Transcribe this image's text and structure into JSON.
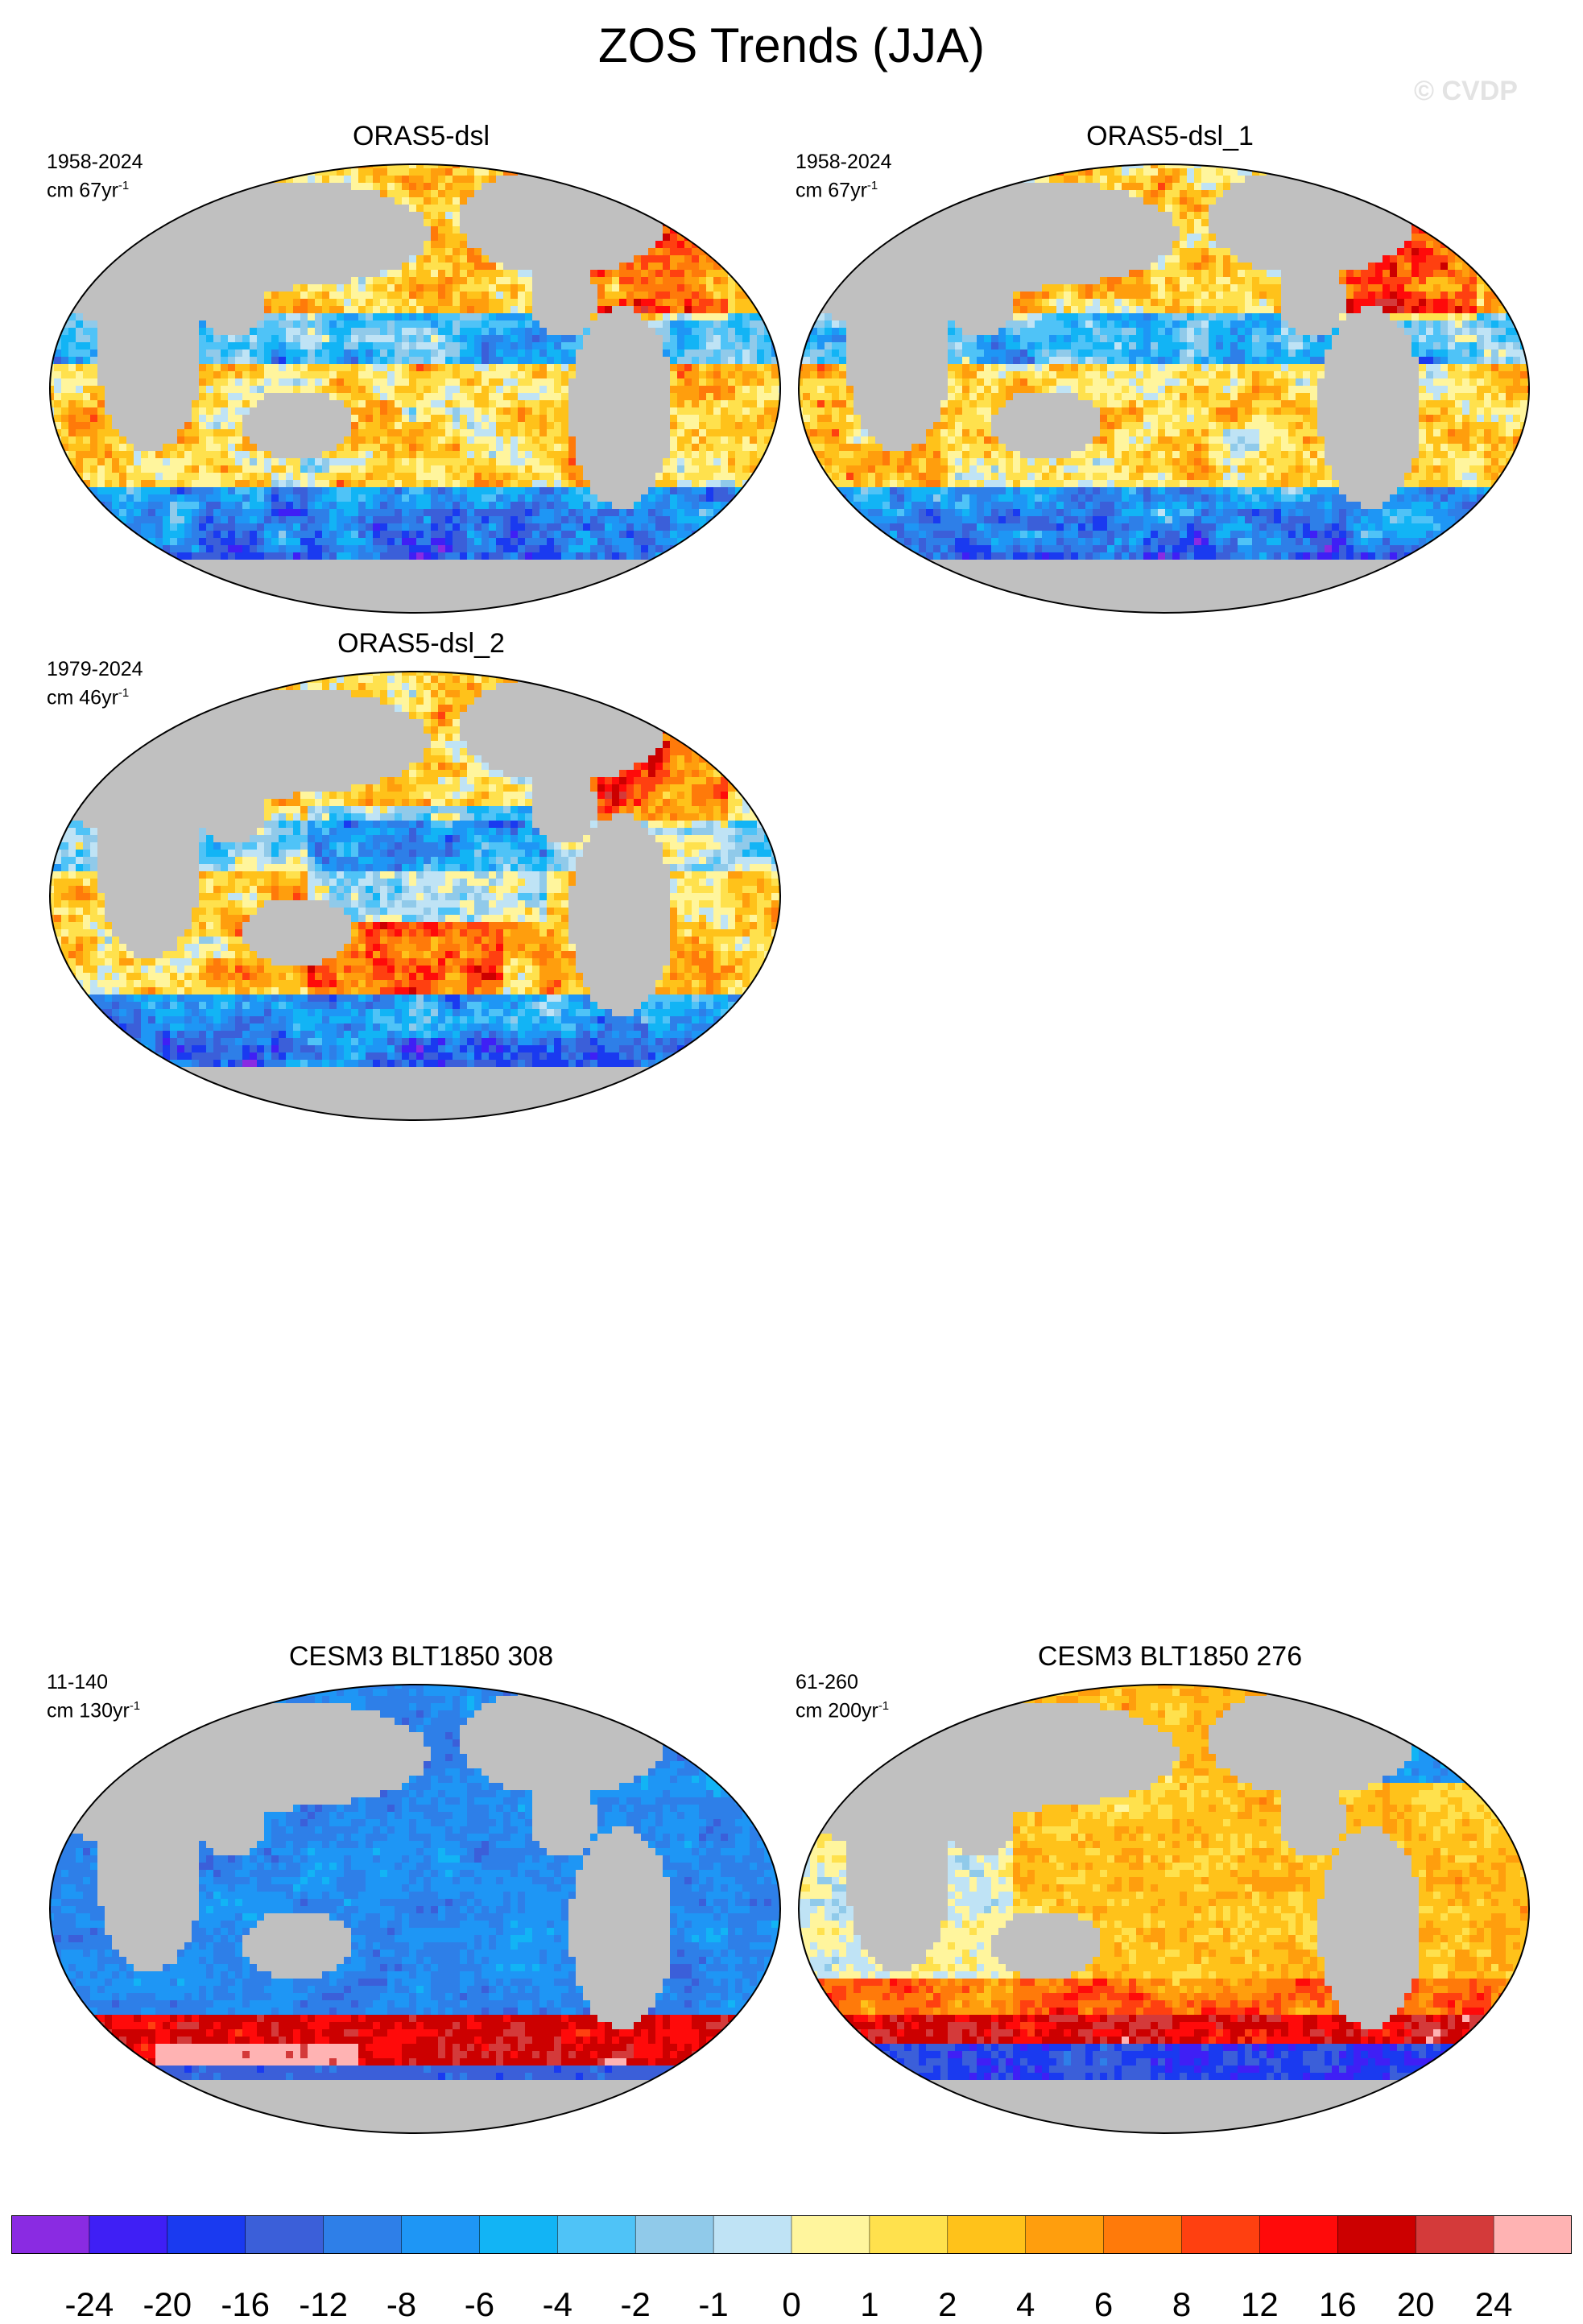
{
  "title": "ZOS Trends (JJA)",
  "watermark": "© CVDP",
  "panels": [
    {
      "title": "ORAS5-dsl",
      "period": "1958-2024",
      "units_prefix": "cm 67yr",
      "units_sup": "-1",
      "pattern": "oras",
      "has_map": true
    },
    {
      "title": "ORAS5-dsl_1",
      "period": "1958-2024",
      "units_prefix": "cm 67yr",
      "units_sup": "-1",
      "pattern": "oras",
      "has_map": true
    },
    {
      "title": "ORAS5-dsl_2",
      "period": "1979-2024",
      "units_prefix": "cm 46yr",
      "units_sup": "-1",
      "pattern": "oras2",
      "has_map": true
    },
    {
      "title": "CESM3 BLT1850 308",
      "period": "11-140",
      "units_prefix": "cm 130yr",
      "units_sup": "-1",
      "pattern": "cesm308",
      "has_map": true
    },
    {
      "title": "CESM3 BLT1850 276",
      "period": "61-260",
      "units_prefix": "cm 200yr",
      "units_sup": "-1",
      "pattern": "cesm276",
      "has_map": true
    }
  ],
  "colorbar": {
    "labels": [
      "-24",
      "-20",
      "-16",
      "-12",
      "-8",
      "-6",
      "-4",
      "-2",
      "-1",
      "0",
      "1",
      "2",
      "4",
      "6",
      "8",
      "12",
      "16",
      "20",
      "24"
    ],
    "colors": [
      "#8a2be2",
      "#3f1ff5",
      "#1a3af0",
      "#3b5fd9",
      "#2e7fe8",
      "#1e96f5",
      "#12b4f5",
      "#4fc3f7",
      "#90caea",
      "#bfe3f5",
      "#fff59d",
      "#ffe14d",
      "#ffc21a",
      "#ff9e0d",
      "#ff7a0a",
      "#ff4010",
      "#ff0a0a",
      "#cc0000",
      "#d43a3a",
      "#ffb3b3"
    ]
  },
  "land_color": "#c0c0c0"
}
